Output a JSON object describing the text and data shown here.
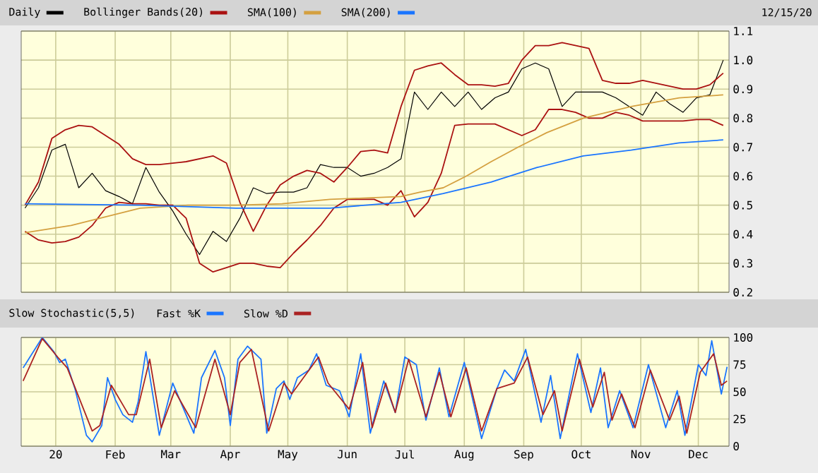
{
  "chart_data": [
    {
      "type": "line",
      "annotations": [
        "12/15/20"
      ],
      "legend": "top",
      "grid": true,
      "tick_labels": "y",
      "marker": "none",
      "line_style": "solid",
      "x": [
        "2019-12-16",
        "2019-12-23",
        "2019-12-30",
        "2020-01-06",
        "2020-01-13",
        "2020-01-20",
        "2020-01-27",
        "2020-02-03",
        "2020-02-10",
        "2020-02-17",
        "2020-02-24",
        "2020-03-02",
        "2020-03-09",
        "2020-03-16",
        "2020-03-23",
        "2020-03-30",
        "2020-04-06",
        "2020-04-13",
        "2020-04-20",
        "2020-04-27",
        "2020-05-04",
        "2020-05-11",
        "2020-05-18",
        "2020-05-25",
        "2020-06-01",
        "2020-06-08",
        "2020-06-15",
        "2020-06-22",
        "2020-06-29",
        "2020-07-06",
        "2020-07-13",
        "2020-07-20",
        "2020-07-27",
        "2020-08-03",
        "2020-08-10",
        "2020-08-17",
        "2020-08-24",
        "2020-08-31",
        "2020-09-07",
        "2020-09-14",
        "2020-09-21",
        "2020-09-28",
        "2020-10-05",
        "2020-10-12",
        "2020-10-19",
        "2020-10-26",
        "2020-11-02",
        "2020-11-09",
        "2020-11-16",
        "2020-11-23",
        "2020-11-30",
        "2020-12-07",
        "2020-12-14"
      ],
      "series": [
        {
          "name": "Daily",
          "color": "#000000",
          "values": [
            0.49,
            0.56,
            0.69,
            0.71,
            0.56,
            0.61,
            0.55,
            0.53,
            0.505,
            0.63,
            0.545,
            0.48,
            0.4,
            0.33,
            0.41,
            0.375,
            0.455,
            0.56,
            0.54,
            0.545,
            0.545,
            0.56,
            0.64,
            0.63,
            0.63,
            0.6,
            0.61,
            0.63,
            0.66,
            0.89,
            0.83,
            0.89,
            0.84,
            0.89,
            0.83,
            0.87,
            0.89,
            0.97,
            0.99,
            0.97,
            0.84,
            0.89,
            0.89,
            0.89,
            0.87,
            0.84,
            0.81,
            0.89,
            0.85,
            0.82,
            0.87,
            0.88,
            1.0
          ]
        },
        {
          "name": "Bollinger Bands(20)",
          "color": "#aa1111",
          "values": [
            0.5,
            0.58,
            0.73,
            0.76,
            0.775,
            0.77,
            0.74,
            0.71,
            0.66,
            0.64,
            0.64,
            0.645,
            0.65,
            0.66,
            0.67,
            0.645,
            0.51,
            0.41,
            0.5,
            0.57,
            0.6,
            0.62,
            0.61,
            0.58,
            0.63,
            0.685,
            0.69,
            0.68,
            0.84,
            0.965,
            0.98,
            0.99,
            0.95,
            0.915,
            0.915,
            0.91,
            0.92,
            1.0,
            1.05,
            1.05,
            1.06,
            1.05,
            1.04,
            0.93,
            0.92,
            0.92,
            0.93,
            0.92,
            0.91,
            0.9,
            0.9,
            0.915,
            0.955
          ]
        },
        {
          "color": "#aa1111",
          "values": [
            0.41,
            0.38,
            0.37,
            0.375,
            0.39,
            0.43,
            0.49,
            0.51,
            0.505,
            0.505,
            0.5,
            0.5,
            0.455,
            0.3,
            0.27,
            0.285,
            0.3,
            0.3,
            0.29,
            0.285,
            0.335,
            0.38,
            0.43,
            0.49,
            0.52,
            0.52,
            0.52,
            0.5,
            0.55,
            0.46,
            0.51,
            0.61,
            0.775,
            0.78,
            0.78,
            0.78,
            0.76,
            0.74,
            0.76,
            0.83,
            0.83,
            0.82,
            0.8,
            0.8,
            0.82,
            0.81,
            0.79,
            0.79,
            0.79,
            0.79,
            0.795,
            0.795,
            0.775
          ]
        },
        {
          "name": "SMA(100)",
          "color": "#d4a040",
          "x": [
            "2019-12-16",
            "2020-01-09",
            "2020-02-14",
            "2020-03-10",
            "2020-04-04",
            "2020-04-28",
            "2020-05-23",
            "2020-06-29",
            "2020-07-09",
            "2020-07-21",
            "2020-08-02",
            "2020-08-15",
            "2020-08-29",
            "2020-09-13",
            "2020-10-02",
            "2020-10-27",
            "2020-11-21",
            "2020-12-14"
          ],
          "values": [
            0.405,
            0.43,
            0.49,
            0.5,
            0.5,
            0.505,
            0.52,
            0.53,
            0.545,
            0.56,
            0.6,
            0.65,
            0.7,
            0.75,
            0.8,
            0.84,
            0.87,
            0.88
          ]
        },
        {
          "name": "SMA(200)",
          "color": "#1a75ff",
          "x": [
            "2019-12-16",
            "2020-02-14",
            "2020-04-04",
            "2020-05-23",
            "2020-06-29",
            "2020-07-21",
            "2020-08-15",
            "2020-09-08",
            "2020-10-02",
            "2020-10-27",
            "2020-11-21",
            "2020-12-14"
          ],
          "values": [
            0.505,
            0.5,
            0.49,
            0.49,
            0.51,
            0.54,
            0.58,
            0.63,
            0.67,
            0.69,
            0.715,
            0.725
          ]
        }
      ],
      "xlim": [
        "2019-12-14",
        "2020-12-17"
      ],
      "ylim": [
        0.2,
        1.1
      ],
      "xticks": [
        {
          "value": "2020-01-01",
          "label": null
        },
        {
          "value": "2020-02-01",
          "label": null
        },
        {
          "value": "2020-03-01",
          "label": null
        },
        {
          "value": "2020-04-01",
          "label": null
        },
        {
          "value": "2020-05-01",
          "label": null
        },
        {
          "value": "2020-06-01",
          "label": null
        },
        {
          "value": "2020-07-01",
          "label": null
        },
        {
          "value": "2020-08-01",
          "label": null
        },
        {
          "value": "2020-09-01",
          "label": null
        },
        {
          "value": "2020-10-01",
          "label": null
        },
        {
          "value": "2020-11-01",
          "label": null
        },
        {
          "value": "2020-12-01",
          "label": null
        }
      ],
      "yticks": [
        0.2,
        0.3,
        0.4,
        0.5,
        0.6,
        0.7,
        0.8,
        0.9,
        {
          "value": 1.0,
          "label": "1.0"
        },
        1.1
      ]
    },
    {
      "type": "line",
      "title": "Slow Stochastic(5,5)",
      "legend": "top",
      "grid": true,
      "marker": "none",
      "line_style": "solid",
      "series": [
        {
          "name": "Fast %K",
          "color": "#1a75ff",
          "x": [
            "2019-12-15",
            "2019-12-25",
            "2019-12-31",
            "2020-01-03",
            "2020-01-06",
            "2020-01-11",
            "2020-01-17",
            "2020-01-20",
            "2020-01-25",
            "2020-01-28",
            "2020-02-01",
            "2020-02-05",
            "2020-02-10",
            "2020-02-13",
            "2020-02-17",
            "2020-02-24",
            "2020-03-02",
            "2020-03-13",
            "2020-03-17",
            "2020-03-24",
            "2020-03-29",
            "2020-04-01",
            "2020-04-05",
            "2020-04-10",
            "2020-04-17",
            "2020-04-20",
            "2020-04-25",
            "2020-04-29",
            "2020-05-02",
            "2020-05-06",
            "2020-05-12",
            "2020-05-16",
            "2020-05-21",
            "2020-05-28",
            "2020-06-02",
            "2020-06-08",
            "2020-06-13",
            "2020-06-20",
            "2020-06-26",
            "2020-07-01",
            "2020-07-07",
            "2020-07-12",
            "2020-07-19",
            "2020-07-24",
            "2020-08-01",
            "2020-08-10",
            "2020-08-18",
            "2020-08-22",
            "2020-08-27",
            "2020-09-02",
            "2020-09-10",
            "2020-09-15",
            "2020-09-20",
            "2020-09-29",
            "2020-10-06",
            "2020-10-11",
            "2020-10-15",
            "2020-10-21",
            "2020-10-28",
            "2020-11-05",
            "2020-11-14",
            "2020-11-20",
            "2020-11-24",
            "2020-12-01",
            "2020-12-05",
            "2020-12-08",
            "2020-12-13",
            "2020-12-16"
          ],
          "values": [
            72,
            100,
            87,
            77,
            80,
            53,
            10,
            4,
            19,
            63,
            43,
            29,
            22,
            41,
            87,
            10,
            58,
            12,
            63,
            88,
            63,
            19,
            80,
            92,
            80,
            12,
            53,
            60,
            43,
            63,
            70,
            85,
            56,
            51,
            27,
            85,
            12,
            60,
            31,
            82,
            75,
            24,
            72,
            27,
            77,
            7,
            53,
            70,
            60,
            89,
            22,
            65,
            7,
            85,
            31,
            72,
            17,
            51,
            17,
            75,
            17,
            51,
            10,
            75,
            65,
            97,
            48,
            73
          ]
        },
        {
          "name": "Slow %D",
          "color": "#aa2222",
          "x": [
            "2019-12-15",
            "2019-12-25",
            "2020-01-02",
            "2020-01-07",
            "2020-01-20",
            "2020-01-24",
            "2020-01-30",
            "2020-02-08",
            "2020-02-12",
            "2020-02-19",
            "2020-02-25",
            "2020-03-03",
            "2020-03-14",
            "2020-03-24",
            "2020-04-01",
            "2020-04-06",
            "2020-04-12",
            "2020-04-21",
            "2020-04-29",
            "2020-05-03",
            "2020-05-17",
            "2020-05-22",
            "2020-06-02",
            "2020-06-09",
            "2020-06-14",
            "2020-06-21",
            "2020-06-26",
            "2020-07-03",
            "2020-07-12",
            "2020-07-19",
            "2020-07-25",
            "2020-08-02",
            "2020-08-10",
            "2020-08-18",
            "2020-08-27",
            "2020-09-03",
            "2020-09-11",
            "2020-09-17",
            "2020-09-21",
            "2020-09-30",
            "2020-10-07",
            "2020-10-13",
            "2020-10-17",
            "2020-10-22",
            "2020-10-29",
            "2020-11-06",
            "2020-11-16",
            "2020-11-21",
            "2020-11-25",
            "2020-12-02",
            "2020-12-09",
            "2020-12-13",
            "2020-12-16"
          ],
          "values": [
            60,
            99,
            82,
            72,
            14,
            19,
            56,
            29,
            29,
            80,
            17,
            51,
            17,
            80,
            29,
            77,
            89,
            14,
            58,
            48,
            82,
            58,
            34,
            77,
            17,
            58,
            31,
            80,
            27,
            68,
            27,
            72,
            14,
            53,
            58,
            82,
            29,
            51,
            14,
            80,
            36,
            68,
            24,
            48,
            17,
            70,
            24,
            46,
            12,
            68,
            85,
            56,
            60
          ]
        }
      ],
      "xlim": [
        "2019-12-14",
        "2020-12-17"
      ],
      "ylim": [
        0,
        100
      ],
      "xticks": [
        {
          "value": "2020-01-01",
          "label": "20"
        },
        {
          "value": "2020-02-01",
          "label": "Feb"
        },
        {
          "value": "2020-03-01",
          "label": "Mar"
        },
        {
          "value": "2020-04-01",
          "label": "Apr"
        },
        {
          "value": "2020-05-01",
          "label": "May"
        },
        {
          "value": "2020-06-01",
          "label": "Jun"
        },
        {
          "value": "2020-07-01",
          "label": "Jul"
        },
        {
          "value": "2020-08-01",
          "label": "Aug"
        },
        {
          "value": "2020-09-01",
          "label": "Sep"
        },
        {
          "value": "2020-10-01",
          "label": "Oct"
        },
        {
          "value": "2020-11-01",
          "label": "Nov"
        },
        {
          "value": "2020-12-01",
          "label": "Dec"
        }
      ],
      "yticks": [
        0,
        25,
        50,
        75,
        100
      ]
    }
  ]
}
